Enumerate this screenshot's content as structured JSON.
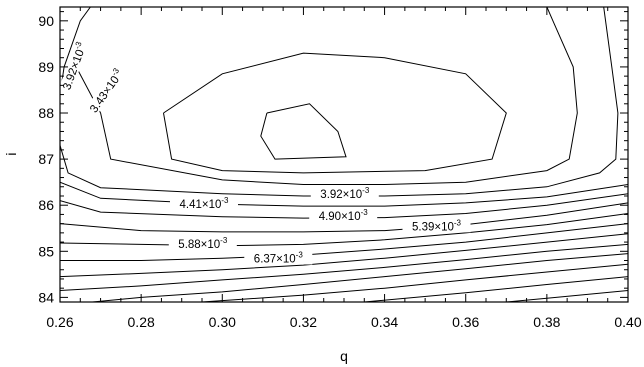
{
  "chart_data": {
    "type": "contour",
    "xlabel": "q",
    "ylabel": "i",
    "xlim": [
      0.26,
      0.4
    ],
    "ylim": [
      83.9,
      90.3
    ],
    "x_ticks": [
      "0.26",
      "0.28",
      "0.30",
      "0.32",
      "0.34",
      "0.36",
      "0.38",
      "0.40"
    ],
    "y_ticks": [
      "84",
      "85",
      "86",
      "87",
      "88",
      "89",
      "90"
    ],
    "grid": false,
    "legend": "none",
    "contours": [
      {
        "name": "innermost",
        "closed": true,
        "points": [
          [
            0.311,
            88.0
          ],
          [
            0.3215,
            88.2
          ],
          [
            0.3285,
            87.6
          ],
          [
            0.3305,
            87.05
          ],
          [
            0.313,
            87.0
          ],
          [
            0.3095,
            87.5
          ],
          [
            0.311,
            88.0
          ]
        ]
      },
      {
        "name": "second",
        "closed": true,
        "points": [
          [
            0.2855,
            88.0
          ],
          [
            0.3,
            88.85
          ],
          [
            0.32,
            89.3
          ],
          [
            0.34,
            89.2
          ],
          [
            0.36,
            88.85
          ],
          [
            0.37,
            88.0
          ],
          [
            0.3665,
            87.0
          ],
          [
            0.35,
            86.75
          ],
          [
            0.32,
            86.7
          ],
          [
            0.3,
            86.75
          ],
          [
            0.2875,
            87.0
          ],
          [
            0.2855,
            88.0
          ]
        ]
      },
      {
        "name": "third",
        "closed": false,
        "points": [
          [
            0.264,
            89.0
          ],
          [
            0.27,
            88.0
          ],
          [
            0.2725,
            87.0
          ],
          [
            0.3,
            86.55
          ],
          [
            0.32,
            86.45
          ],
          [
            0.34,
            86.45
          ],
          [
            0.36,
            86.5
          ],
          [
            0.38,
            86.75
          ],
          [
            0.3855,
            87.0
          ],
          [
            0.3875,
            88.0
          ],
          [
            0.3865,
            89.0
          ],
          [
            0.3815,
            90.0
          ],
          [
            0.38,
            90.3
          ]
        ]
      },
      {
        "name": "fourth",
        "closed": false,
        "points": [
          [
            0.26,
            88.4
          ],
          [
            0.261,
            89.0
          ],
          [
            0.265,
            90.0
          ],
          [
            0.2675,
            90.3
          ]
        ]
      },
      {
        "name": "fifth",
        "closed": false,
        "points": [
          [
            0.26,
            87.3
          ],
          [
            0.262,
            86.7
          ],
          [
            0.27,
            86.38
          ],
          [
            0.3,
            86.25
          ],
          [
            0.32,
            86.2
          ],
          [
            0.34,
            86.2
          ],
          [
            0.36,
            86.25
          ],
          [
            0.38,
            86.4
          ],
          [
            0.393,
            86.7
          ],
          [
            0.397,
            87.0
          ],
          [
            0.3975,
            88.0
          ],
          [
            0.396,
            89.0
          ],
          [
            0.394,
            90.3
          ]
        ]
      },
      {
        "name": "sixth",
        "closed": false,
        "points": [
          [
            0.26,
            86.5
          ],
          [
            0.27,
            86.15
          ],
          [
            0.3,
            86.02
          ],
          [
            0.32,
            85.98
          ],
          [
            0.34,
            85.98
          ],
          [
            0.36,
            86.05
          ],
          [
            0.38,
            86.18
          ],
          [
            0.4,
            86.45
          ]
        ]
      },
      {
        "name": "seventh",
        "closed": false,
        "points": [
          [
            0.26,
            86.1
          ],
          [
            0.27,
            85.85
          ],
          [
            0.3,
            85.75
          ],
          [
            0.32,
            85.72
          ],
          [
            0.34,
            85.73
          ],
          [
            0.36,
            85.82
          ],
          [
            0.38,
            86.0
          ],
          [
            0.4,
            86.25
          ]
        ]
      },
      {
        "name": "eighth",
        "closed": false,
        "points": [
          [
            0.26,
            85.6
          ],
          [
            0.28,
            85.45
          ],
          [
            0.3,
            85.42
          ],
          [
            0.32,
            85.42
          ],
          [
            0.34,
            85.45
          ],
          [
            0.36,
            85.58
          ],
          [
            0.38,
            85.78
          ],
          [
            0.4,
            86.05
          ]
        ]
      },
      {
        "name": "ninth",
        "closed": false,
        "points": [
          [
            0.26,
            85.18
          ],
          [
            0.28,
            85.15
          ],
          [
            0.3,
            85.12
          ],
          [
            0.32,
            85.15
          ],
          [
            0.34,
            85.25
          ],
          [
            0.36,
            85.4
          ],
          [
            0.38,
            85.58
          ],
          [
            0.4,
            85.82
          ]
        ]
      },
      {
        "name": "tenth",
        "closed": false,
        "points": [
          [
            0.26,
            84.8
          ],
          [
            0.28,
            84.8
          ],
          [
            0.3,
            84.85
          ],
          [
            0.32,
            84.92
          ],
          [
            0.34,
            85.05
          ],
          [
            0.36,
            85.2
          ],
          [
            0.38,
            85.4
          ],
          [
            0.4,
            85.6
          ]
        ]
      },
      {
        "name": "eleventh",
        "closed": false,
        "points": [
          [
            0.26,
            84.45
          ],
          [
            0.28,
            84.52
          ],
          [
            0.3,
            84.6
          ],
          [
            0.32,
            84.7
          ],
          [
            0.34,
            84.85
          ],
          [
            0.36,
            85.02
          ],
          [
            0.38,
            85.2
          ],
          [
            0.4,
            85.38
          ]
        ]
      },
      {
        "name": "twelfth",
        "closed": false,
        "points": [
          [
            0.26,
            84.15
          ],
          [
            0.28,
            84.25
          ],
          [
            0.3,
            84.38
          ],
          [
            0.32,
            84.5
          ],
          [
            0.34,
            84.65
          ],
          [
            0.36,
            84.82
          ],
          [
            0.38,
            85.0
          ],
          [
            0.4,
            85.15
          ]
        ]
      },
      {
        "name": "thirteenth",
        "closed": false,
        "points": [
          [
            0.268,
            83.9
          ],
          [
            0.28,
            84.0
          ],
          [
            0.3,
            84.12
          ],
          [
            0.32,
            84.28
          ],
          [
            0.34,
            84.45
          ],
          [
            0.36,
            84.62
          ],
          [
            0.38,
            84.8
          ],
          [
            0.4,
            84.95
          ]
        ]
      },
      {
        "name": "fourteenth",
        "closed": false,
        "points": [
          [
            0.295,
            83.9
          ],
          [
            0.32,
            84.05
          ],
          [
            0.34,
            84.2
          ],
          [
            0.36,
            84.38
          ],
          [
            0.38,
            84.55
          ],
          [
            0.4,
            84.72
          ]
        ]
      },
      {
        "name": "fifteenth",
        "closed": false,
        "points": [
          [
            0.335,
            83.9
          ],
          [
            0.36,
            84.1
          ],
          [
            0.38,
            84.28
          ],
          [
            0.4,
            84.45
          ]
        ]
      },
      {
        "name": "sixteenth",
        "closed": false,
        "points": [
          [
            0.37,
            83.9
          ],
          [
            0.38,
            83.98
          ],
          [
            0.4,
            84.15
          ]
        ]
      }
    ],
    "level_labels": [
      {
        "mantissa": "3.92",
        "exp": "-3",
        "x": 0.264,
        "y": 89.0,
        "rotate": -70
      },
      {
        "mantissa": "3.43",
        "exp": "-3",
        "x": 0.2718,
        "y": 88.45,
        "rotate": -55
      },
      {
        "mantissa": "3.92",
        "exp": "-3",
        "x": 0.3302,
        "y": 86.2,
        "rotate": 0
      },
      {
        "mantissa": "4.41",
        "exp": "-3",
        "x": 0.2955,
        "y": 85.98,
        "rotate": 0
      },
      {
        "mantissa": "4.90",
        "exp": "-3",
        "x": 0.3298,
        "y": 85.72,
        "rotate": 0
      },
      {
        "mantissa": "5.39",
        "exp": "-3",
        "x": 0.3528,
        "y": 85.5,
        "rotate": 0
      },
      {
        "mantissa": "5.88",
        "exp": "-3",
        "x": 0.2952,
        "y": 85.12,
        "rotate": 0
      },
      {
        "mantissa": "6.37",
        "exp": "-3",
        "x": 0.3138,
        "y": 84.8,
        "rotate": 0
      }
    ]
  }
}
